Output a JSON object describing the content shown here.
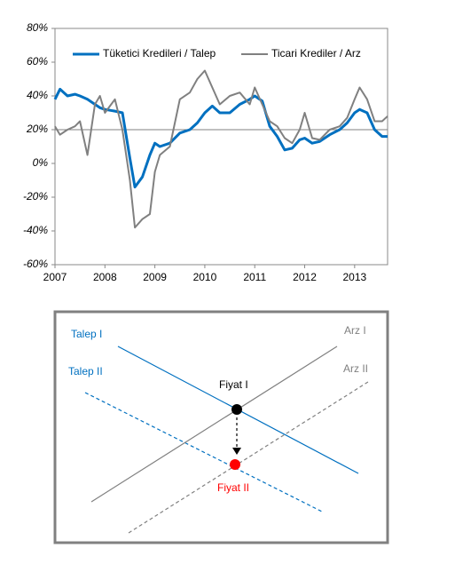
{
  "chart_data": {
    "type": "line",
    "x": [
      2007.0,
      2007.1,
      2007.25,
      2007.4,
      2007.5,
      2007.65,
      2007.8,
      2007.9,
      2008.0,
      2008.2,
      2008.35,
      2008.5,
      2008.6,
      2008.75,
      2008.9,
      2009.0,
      2009.1,
      2009.3,
      2009.5,
      2009.7,
      2009.85,
      2010.0,
      2010.15,
      2010.3,
      2010.5,
      2010.7,
      2010.9,
      2011.0,
      2011.15,
      2011.3,
      2011.45,
      2011.6,
      2011.75,
      2011.9,
      2012.0,
      2012.15,
      2012.3,
      2012.5,
      2012.7,
      2012.85,
      2013.0,
      2013.1,
      2013.25,
      2013.4,
      2013.55,
      2013.66
    ],
    "series": [
      {
        "name": "Tüketici Kredileri / Talep",
        "color": "#0070c0",
        "values": [
          38,
          44,
          40,
          41,
          40,
          38,
          35,
          33,
          32,
          31,
          30,
          3,
          -14,
          -8,
          5,
          12,
          10,
          12,
          18,
          20,
          24,
          30,
          34,
          30,
          30,
          35,
          38,
          40,
          37,
          22,
          16,
          8,
          9,
          14,
          15,
          12,
          13,
          17,
          20,
          24,
          30,
          32,
          30,
          20,
          16,
          16
        ]
      },
      {
        "name": "Ticari Krediler / Arz",
        "color": "#808080",
        "values": [
          22,
          17,
          20,
          22,
          25,
          5,
          35,
          40,
          30,
          38,
          20,
          -10,
          -38,
          -33,
          -30,
          -5,
          5,
          10,
          38,
          42,
          50,
          55,
          45,
          35,
          40,
          42,
          35,
          45,
          35,
          25,
          22,
          15,
          12,
          20,
          30,
          15,
          14,
          20,
          22,
          27,
          38,
          45,
          38,
          25,
          25,
          28
        ]
      }
    ],
    "xlim": [
      2007,
      2013.66
    ],
    "xticks": [
      2007,
      2008,
      2009,
      2010,
      2011,
      2012,
      2013
    ],
    "ylim": [
      -60,
      80
    ],
    "yticks": [
      {
        "value": -60,
        "label": "-60%"
      },
      {
        "value": -40,
        "label": "-40%"
      },
      {
        "value": -20,
        "label": "-20%"
      },
      {
        "value": 0,
        "label": "0%"
      },
      {
        "value": 20,
        "label": "20%"
      },
      {
        "value": 40,
        "label": "40%"
      },
      {
        "value": 60,
        "label": "60%"
      },
      {
        "value": 80,
        "label": "80%"
      }
    ],
    "reference_line": 20,
    "legend": "top"
  },
  "diagram": {
    "demand_1": "Talep I",
    "demand_2": "Talep II",
    "supply_1": "Arz I",
    "supply_2": "Arz II",
    "price_1": "Fiyat I",
    "price_2": "Fiyat II"
  }
}
